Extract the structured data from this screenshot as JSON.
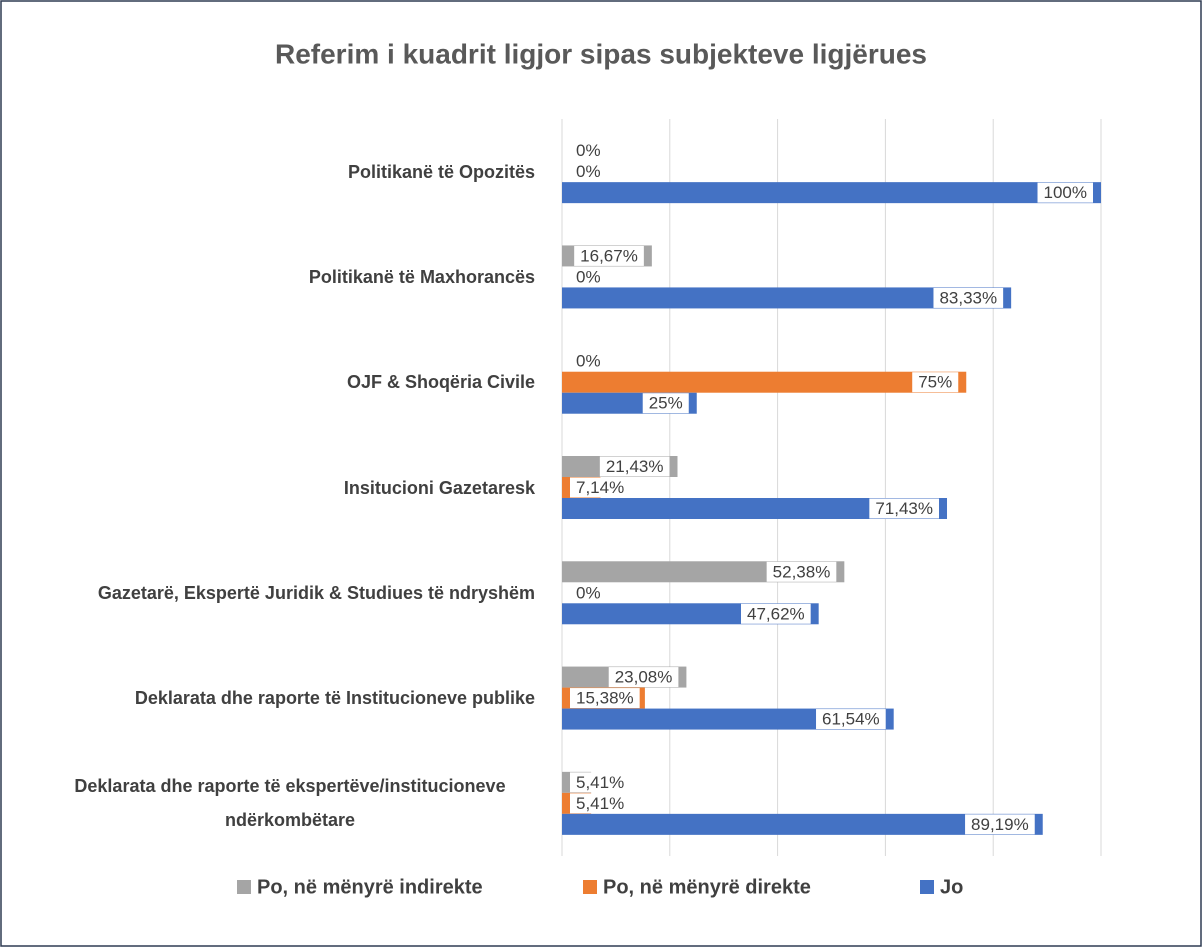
{
  "chart_data": {
    "type": "barh",
    "title": "Referim i kuadrit ligjor sipas subjekteve ligjërues",
    "categories": [
      "Politikanë të Opozitës",
      "Politikanë të Maxhorancës",
      "OJF & Shoqëria Civile",
      "Insitucioni Gazetaresk",
      "Gazetarë, Ekspertë Juridik & Studiues të ndryshëm",
      "Deklarata dhe raporte të Institucioneve publike",
      "Deklarata dhe raporte të ekspertëve/institucioneve ndërkombëtare"
    ],
    "series": [
      {
        "name": "Po, në mënyrë indirekte",
        "color": "#a5a5a5",
        "values": [
          0,
          16.67,
          0,
          21.43,
          52.38,
          23.08,
          5.41
        ],
        "value_labels": [
          "0%",
          "16,67%",
          "0%",
          "21,43%",
          "52,38%",
          "23,08%",
          "5,41%"
        ]
      },
      {
        "name": "Po, në mënyrë direkte",
        "color": "#ed7d31",
        "values": [
          0,
          0,
          75,
          7.14,
          0,
          15.38,
          5.41
        ],
        "value_labels": [
          "0%",
          "0%",
          "75%",
          "7,14%",
          "0%",
          "15,38%",
          "5,41%"
        ]
      },
      {
        "name": "Jo",
        "color": "#4472c4",
        "values": [
          100,
          83.33,
          25,
          71.43,
          47.62,
          61.54,
          89.19
        ],
        "value_labels": [
          "100%",
          "83,33%",
          "25%",
          "71,43%",
          "47,62%",
          "61,54%",
          "89,19%"
        ]
      }
    ],
    "xlim": [
      0,
      100
    ],
    "xticks": [
      0,
      20,
      40,
      60,
      80,
      100
    ],
    "grid": true,
    "legend": "bottom"
  }
}
